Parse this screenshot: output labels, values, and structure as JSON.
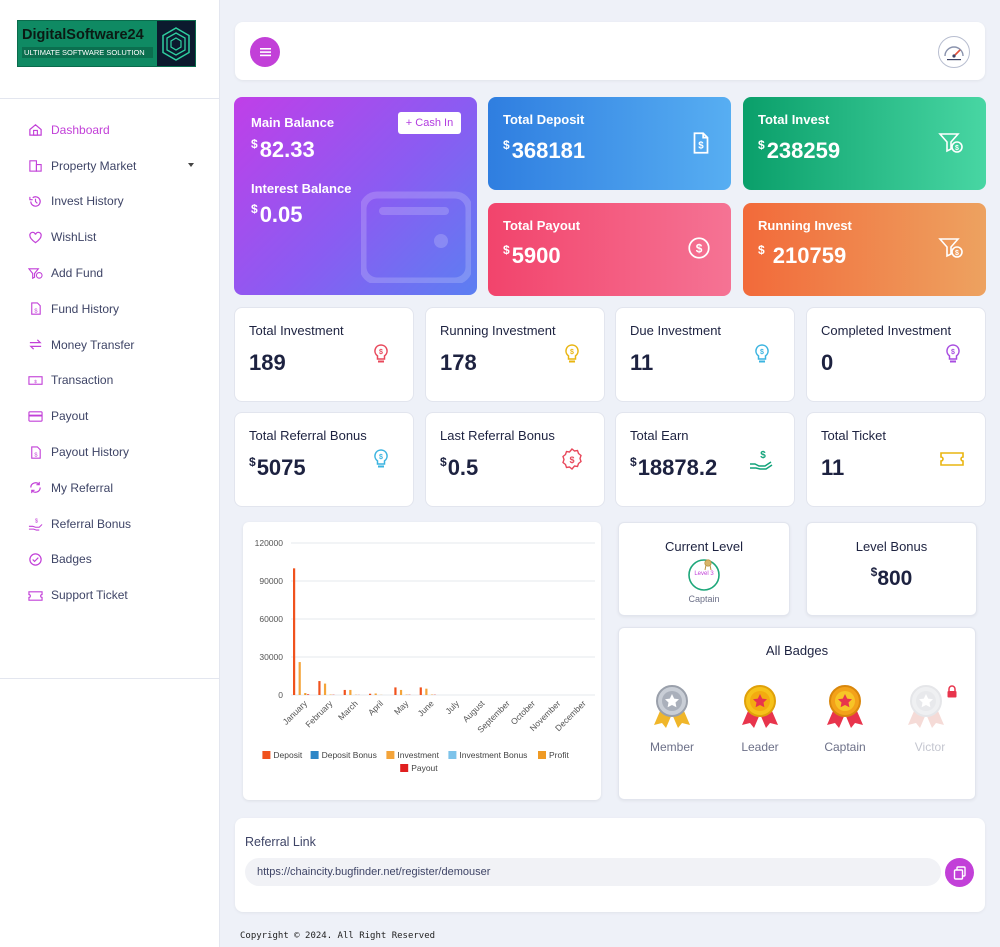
{
  "brand": {
    "title": "DigitalSoftware24",
    "subtitle": "ULTIMATE SOFTWARE SOLUTION"
  },
  "sidebar": {
    "items": [
      {
        "label": "Dashboard",
        "icon": "home-icon",
        "active": true
      },
      {
        "label": "Property Market",
        "icon": "building-icon",
        "has_caret": true
      },
      {
        "label": "Invest History",
        "icon": "history-icon"
      },
      {
        "label": "WishList",
        "icon": "heart-icon"
      },
      {
        "label": "Add Fund",
        "icon": "funnel-dollar-icon"
      },
      {
        "label": "Fund History",
        "icon": "file-dollar-icon"
      },
      {
        "label": "Money Transfer",
        "icon": "transfer-icon"
      },
      {
        "label": "Transaction",
        "icon": "money-bill-icon"
      },
      {
        "label": "Payout",
        "icon": "credit-card-icon"
      },
      {
        "label": "Payout History",
        "icon": "file-dollar-icon"
      },
      {
        "label": "My Referral",
        "icon": "sync-icon"
      },
      {
        "label": "Referral Bonus",
        "icon": "hand-dollar-icon"
      },
      {
        "label": "Badges",
        "icon": "check-circle-icon"
      },
      {
        "label": "Support Ticket",
        "icon": "ticket-icon"
      }
    ]
  },
  "balance": {
    "main_label": "Main Balance",
    "main_currency": "$",
    "main_value": "82.33",
    "interest_label": "Interest Balance",
    "interest_currency": "$",
    "interest_value": "0.05",
    "cashin_label": "+ Cash In"
  },
  "summary_cards": {
    "deposit": {
      "label": "Total Deposit",
      "currency": "$",
      "value": "368181"
    },
    "invest": {
      "label": "Total Invest",
      "currency": "$",
      "value": "238259"
    },
    "payout": {
      "label": "Total Payout",
      "currency": "$",
      "value": "5900"
    },
    "running": {
      "label": "Running Invest",
      "currency": "$",
      "value": " 210759"
    }
  },
  "stats": {
    "total_investment": {
      "label": "Total Investment",
      "value": "189"
    },
    "running_investment": {
      "label": "Running Investment",
      "value": "178"
    },
    "due_investment": {
      "label": "Due Investment",
      "value": "11"
    },
    "completed_investment": {
      "label": "Completed Investment",
      "value": "0"
    },
    "total_referral_bonus": {
      "label": "Total Referral Bonus",
      "currency": "$",
      "value": "5075"
    },
    "last_referral_bonus": {
      "label": "Last Referral Bonus",
      "currency": "$",
      "value": "0.5"
    },
    "total_earn": {
      "label": "Total Earn",
      "currency": "$",
      "value": "18878.2"
    },
    "total_ticket": {
      "label": "Total Ticket",
      "value": "11"
    }
  },
  "level": {
    "current_label": "Current Level",
    "badge_text": "Level 3",
    "name": "Captain",
    "bonus_label": "Level Bonus",
    "bonus_currency": "$",
    "bonus_value": "800"
  },
  "badges": {
    "title": "All Badges",
    "items": [
      {
        "name": "Member",
        "locked": false
      },
      {
        "name": "Leader",
        "locked": false
      },
      {
        "name": "Captain",
        "locked": false
      },
      {
        "name": "Victor",
        "locked": true
      }
    ]
  },
  "referral": {
    "title": "Referral Link",
    "url": "https://chaincity.bugfinder.net/register/demouser"
  },
  "footer": {
    "text": "Copyright © 2024. All Right Reserved"
  },
  "colors": {
    "accent": "#c240d8",
    "text": "#1d2240"
  },
  "chart_data": {
    "type": "bar",
    "categories": [
      "January",
      "February",
      "March",
      "April",
      "May",
      "June",
      "July",
      "August",
      "September",
      "October",
      "November",
      "December"
    ],
    "ylim": [
      0,
      120000
    ],
    "yticks": [
      "0",
      "30000",
      "60000",
      "90000",
      "120000"
    ],
    "series": [
      {
        "name": "Deposit",
        "color": "#f0521d",
        "values": [
          100000,
          11000,
          4000,
          1000,
          6000,
          6000,
          0,
          0,
          0,
          0,
          0,
          0
        ]
      },
      {
        "name": "Deposit Bonus",
        "color": "#2c86c7",
        "values": [
          0,
          0,
          0,
          0,
          0,
          0,
          0,
          0,
          0,
          0,
          0,
          0
        ]
      },
      {
        "name": "Investment",
        "color": "#f4a43a",
        "values": [
          26000,
          9000,
          4000,
          1200,
          4000,
          5000,
          0,
          0,
          0,
          0,
          0,
          0
        ]
      },
      {
        "name": "Investment Bonus",
        "color": "#7dc3ea",
        "values": [
          0,
          0,
          0,
          0,
          0,
          0,
          0,
          0,
          0,
          0,
          0,
          0
        ]
      },
      {
        "name": "Profit",
        "color": "#ef9a24",
        "values": [
          1500,
          300,
          200,
          100,
          300,
          300,
          0,
          0,
          0,
          0,
          0,
          0
        ]
      },
      {
        "name": "Payout",
        "color": "#e01f1f",
        "values": [
          500,
          200,
          100,
          0,
          200,
          200,
          0,
          0,
          0,
          0,
          0,
          0
        ]
      }
    ]
  }
}
